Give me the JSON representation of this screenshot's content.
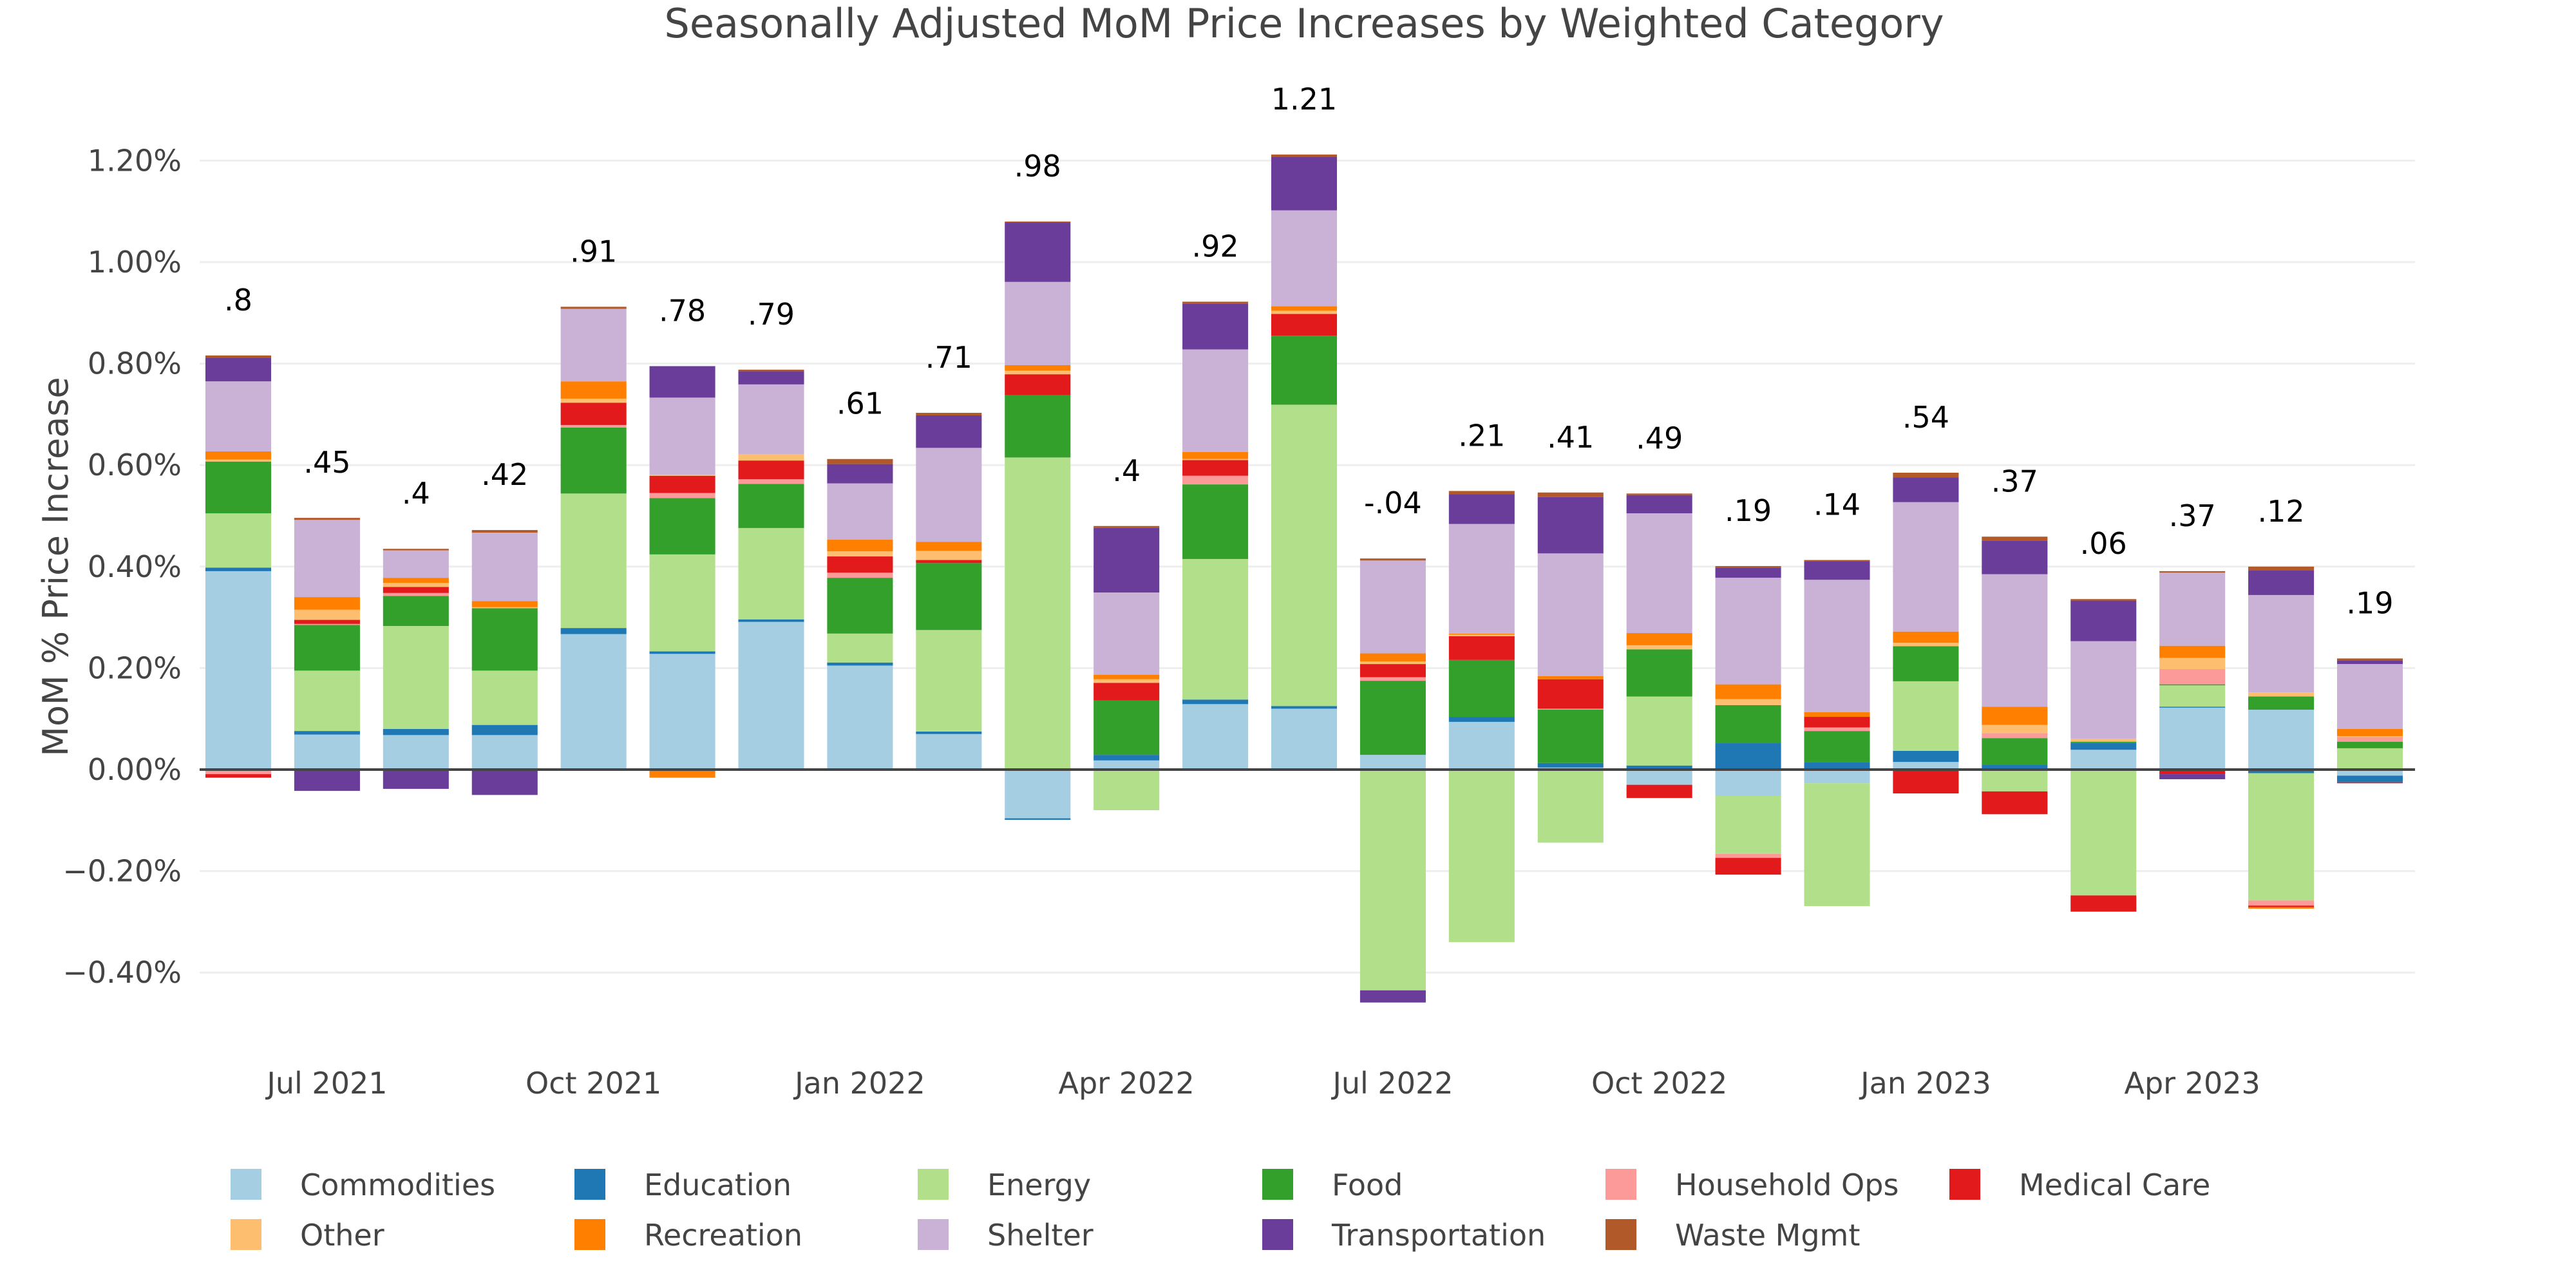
{
  "chart_data": {
    "type": "bar",
    "barmode": "relative",
    "title": "Seasonally Adjusted MoM Price Increases by Weighted Category",
    "xlabel": "",
    "ylabel": "MoM % Price Increase",
    "ylim": [
      -0.5,
      1.3
    ],
    "ytick_values": [
      -0.4,
      -0.2,
      0,
      0.2,
      0.4,
      0.6,
      0.8,
      1.0,
      1.2
    ],
    "ytick_labels": [
      "−0.40%",
      "−0.20%",
      "0.00%",
      "0.20%",
      "0.40%",
      "0.60%",
      "0.80%",
      "1.00%",
      "1.20%"
    ],
    "grid": true,
    "legend_position": "bottom",
    "categories": [
      "Jun 2021",
      "Jul 2021",
      "Aug 2021",
      "Sep 2021",
      "Oct 2021",
      "Nov 2021",
      "Dec 2021",
      "Jan 2022",
      "Feb 2022",
      "Mar 2022",
      "Apr 2022",
      "May 2022",
      "Jun 2022",
      "Jul 2022",
      "Aug 2022",
      "Sep 2022",
      "Oct 2022",
      "Nov 2022",
      "Dec 2022",
      "Jan 2023",
      "Feb 2023",
      "Mar 2023",
      "Apr 2023",
      "May 2023",
      "Jun 2023"
    ],
    "xtick_labels": [
      {
        "category": "Jul 2021",
        "label": "Jul 2021"
      },
      {
        "category": "Oct 2021",
        "label": "Oct 2021"
      },
      {
        "category": "Jan 2022",
        "label": "Jan 2022"
      },
      {
        "category": "Apr 2022",
        "label": "Apr 2022"
      },
      {
        "category": "Jul 2022",
        "label": "Jul 2022"
      },
      {
        "category": "Oct 2022",
        "label": "Oct 2022"
      },
      {
        "category": "Jan 2023",
        "label": "Jan 2023"
      },
      {
        "category": "Apr 2023",
        "label": "Apr 2023"
      }
    ],
    "totals": [
      0.8,
      0.45,
      0.4,
      0.42,
      0.91,
      0.78,
      0.79,
      0.61,
      0.71,
      0.98,
      0.4,
      0.92,
      1.21,
      -0.04,
      0.21,
      0.41,
      0.49,
      0.19,
      0.14,
      0.54,
      0.37,
      0.06,
      0.37,
      0.12,
      0.19
    ],
    "total_labels": [
      ".8",
      ".45",
      ".4",
      ".42",
      ".91",
      ".78",
      ".79",
      ".61",
      ".71",
      ".98",
      ".4",
      ".92",
      "1.21",
      "-.04",
      ".21",
      ".41",
      ".49",
      ".19",
      ".14",
      ".54",
      ".37",
      ".06",
      ".37",
      ".12",
      ".19"
    ],
    "total_label_colors": {
      "positive": "#000000",
      "negative": "#e31a1c"
    },
    "series": [
      {
        "name": "Commodities",
        "color": "#a6cee3",
        "values": [
          0.391,
          0.069,
          0.068,
          0.068,
          0.267,
          0.228,
          0.291,
          0.205,
          0.07,
          -0.096,
          0.018,
          0.129,
          0.12,
          0.029,
          0.094,
          0.004,
          -0.03,
          -0.052,
          -0.027,
          0.015,
          0.0,
          0.039,
          0.122,
          0.118,
          -0.012
        ]
      },
      {
        "name": "Education",
        "color": "#1f78b4",
        "values": [
          0.007,
          0.007,
          0.012,
          0.02,
          0.012,
          0.005,
          0.005,
          0.006,
          0.005,
          -0.003,
          0.011,
          0.009,
          0.005,
          0.0,
          0.01,
          0.009,
          0.008,
          0.052,
          0.015,
          0.022,
          0.01,
          0.014,
          0.002,
          -0.007,
          -0.013
        ]
      },
      {
        "name": "Energy",
        "color": "#b2df8a",
        "values": [
          0.107,
          0.119,
          0.203,
          0.107,
          0.265,
          0.191,
          0.18,
          0.057,
          0.2,
          0.615,
          -0.08,
          0.277,
          0.594,
          -0.435,
          -0.34,
          -0.144,
          0.136,
          -0.114,
          -0.242,
          0.137,
          -0.043,
          -0.248,
          0.042,
          -0.251,
          0.042
        ]
      },
      {
        "name": "Food",
        "color": "#33a02c",
        "values": [
          0.102,
          0.09,
          0.059,
          0.123,
          0.13,
          0.111,
          0.087,
          0.11,
          0.132,
          0.123,
          0.107,
          0.147,
          0.136,
          0.146,
          0.112,
          0.105,
          0.093,
          0.075,
          0.061,
          0.069,
          0.052,
          0.002,
          0.002,
          0.026,
          0.013
        ]
      },
      {
        "name": "Household Ops",
        "color": "#fb9a99",
        "values": [
          -0.009,
          0.002,
          0.006,
          -0.002,
          0.005,
          0.01,
          0.009,
          0.01,
          0.0,
          0.0,
          0.0,
          0.017,
          0.0,
          0.007,
          0.0,
          0.002,
          0.0,
          -0.008,
          0.007,
          0.0,
          0.01,
          0.0,
          0.03,
          -0.01,
          0.009
        ]
      },
      {
        "name": "Medical Care",
        "color": "#e31a1c",
        "values": [
          -0.007,
          0.008,
          0.012,
          0.0,
          0.044,
          0.034,
          0.037,
          0.032,
          0.006,
          0.041,
          0.035,
          0.031,
          0.043,
          0.026,
          0.047,
          0.058,
          -0.026,
          -0.033,
          0.021,
          -0.047,
          -0.045,
          -0.032,
          -0.009,
          -0.003,
          -0.002
        ]
      },
      {
        "name": "Other",
        "color": "#fdbf6f",
        "values": [
          0.004,
          0.02,
          0.008,
          0.002,
          0.008,
          0.002,
          0.012,
          0.01,
          0.018,
          0.007,
          0.007,
          0.002,
          0.006,
          0.005,
          0.003,
          0.0,
          0.008,
          0.012,
          0.0,
          0.007,
          0.016,
          0.006,
          0.022,
          0.008,
          0.002
        ]
      },
      {
        "name": "Recreation",
        "color": "#ff7f00",
        "values": [
          0.016,
          0.025,
          0.01,
          0.012,
          0.034,
          -0.016,
          0.0,
          0.023,
          0.018,
          0.011,
          0.009,
          0.014,
          0.009,
          0.016,
          0.002,
          0.006,
          0.024,
          0.029,
          0.009,
          0.022,
          0.036,
          0.0,
          0.024,
          -0.003,
          0.014
        ]
      },
      {
        "name": "Shelter",
        "color": "#cab2d6",
        "values": [
          0.138,
          0.152,
          0.054,
          0.135,
          0.143,
          0.152,
          0.138,
          0.111,
          0.185,
          0.164,
          0.162,
          0.202,
          0.189,
          0.183,
          0.216,
          0.242,
          0.236,
          0.21,
          0.261,
          0.255,
          0.261,
          0.192,
          0.144,
          0.192,
          0.128
        ]
      },
      {
        "name": "Transportation",
        "color": "#6a3d9a",
        "values": [
          0.047,
          -0.042,
          -0.038,
          -0.048,
          0.0,
          0.062,
          0.026,
          0.038,
          0.064,
          0.117,
          0.127,
          0.09,
          0.106,
          -0.024,
          0.059,
          0.111,
          0.036,
          0.02,
          0.037,
          0.049,
          0.066,
          0.08,
          -0.01,
          0.049,
          0.007
        ]
      },
      {
        "name": "Waste Mgmt",
        "color": "#b15928",
        "values": [
          0.004,
          0.004,
          0.003,
          0.005,
          0.004,
          0.0,
          0.003,
          0.01,
          0.005,
          0.002,
          0.004,
          0.004,
          0.004,
          0.004,
          0.006,
          0.009,
          0.003,
          0.003,
          0.002,
          0.009,
          0.008,
          0.003,
          0.003,
          0.007,
          0.004
        ]
      }
    ]
  }
}
